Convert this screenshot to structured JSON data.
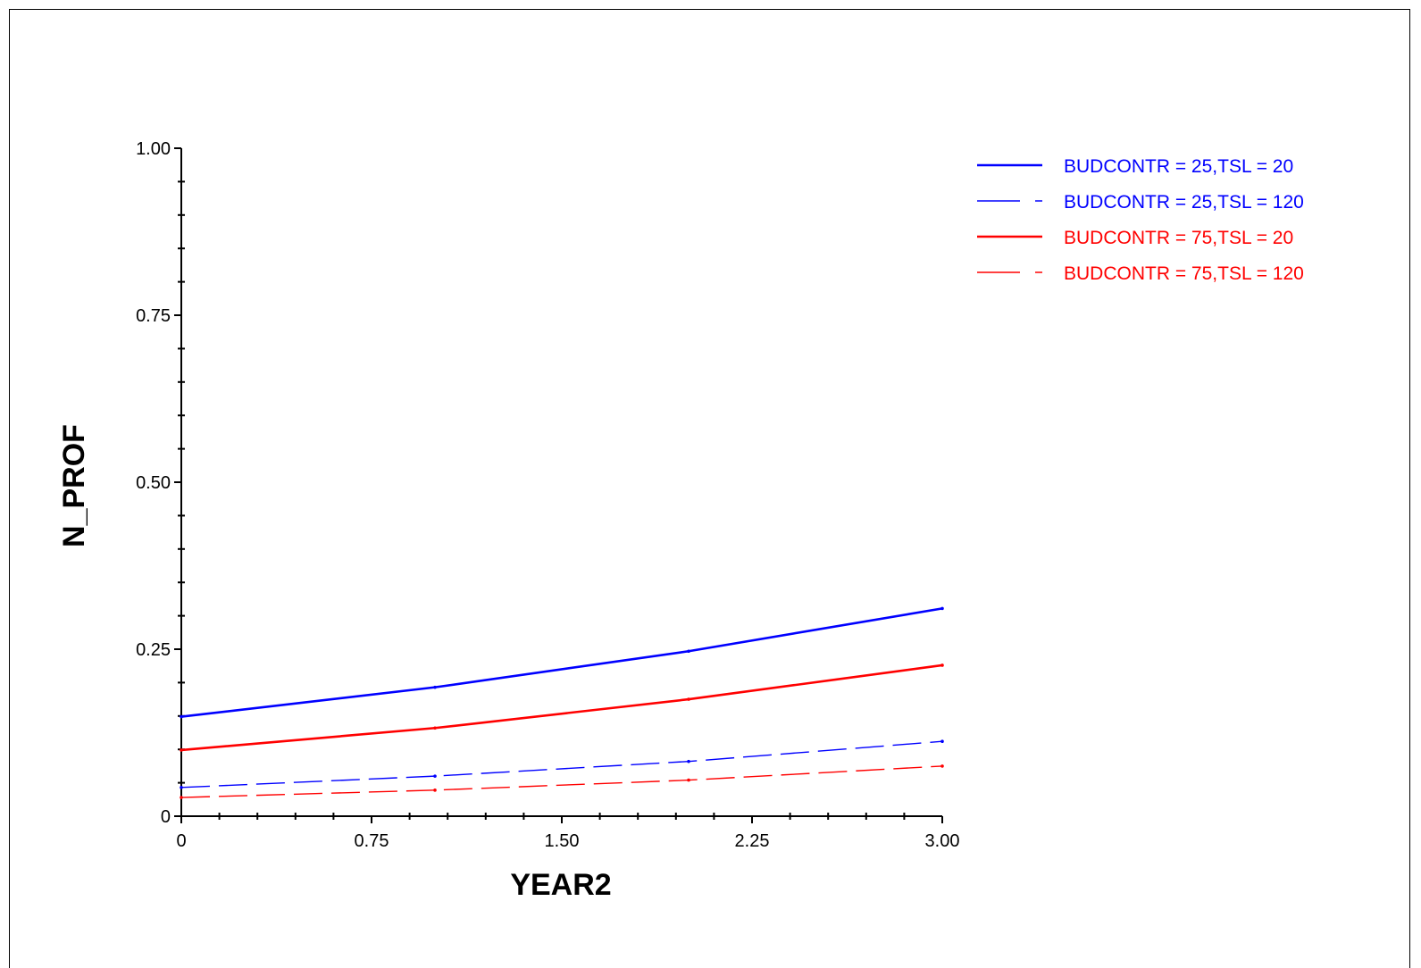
{
  "chart_data": {
    "type": "line",
    "xlabel": "YEAR2",
    "ylabel": "N_PROF",
    "xlim": [
      0,
      3
    ],
    "ylim": [
      0,
      1
    ],
    "x_ticks": [
      "0",
      "0.75",
      "1.50",
      "2.25",
      "3.00"
    ],
    "x_tick_values": [
      0,
      0.75,
      1.5,
      2.25,
      3.0
    ],
    "y_ticks": [
      "0",
      "0.25",
      "0.50",
      "0.75",
      "1.00"
    ],
    "y_tick_values": [
      0,
      0.25,
      0.5,
      0.75,
      1.0
    ],
    "grid": false,
    "legend_position": "top-right",
    "x": [
      0,
      1,
      2,
      3
    ],
    "series": [
      {
        "name": "BUDCONTR = 25,TSL = 20",
        "color": "#0000ff",
        "style": "solid",
        "values": [
          0.149,
          0.193,
          0.247,
          0.311
        ]
      },
      {
        "name": "BUDCONTR = 25,TSL = 120",
        "color": "#0000ff",
        "style": "dashed",
        "values": [
          0.043,
          0.06,
          0.082,
          0.112
        ]
      },
      {
        "name": "BUDCONTR = 75,TSL = 20",
        "color": "#ff0000",
        "style": "solid",
        "values": [
          0.099,
          0.132,
          0.175,
          0.226
        ]
      },
      {
        "name": "BUDCONTR = 75,TSL = 120",
        "color": "#ff0000",
        "style": "dashed",
        "values": [
          0.028,
          0.039,
          0.054,
          0.075
        ]
      }
    ]
  }
}
